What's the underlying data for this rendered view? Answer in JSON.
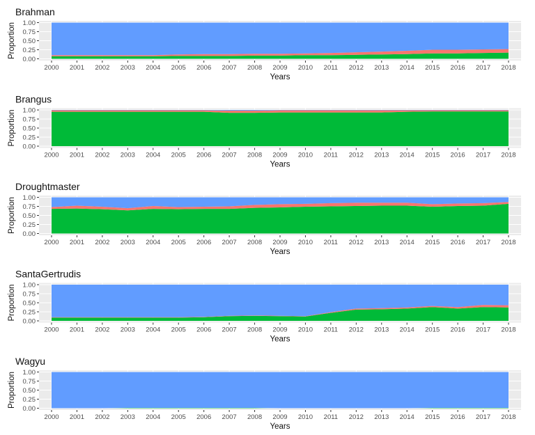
{
  "chart_data": {
    "type": "area",
    "layout": "stacked-proportion-small-multiples",
    "xlabel": "Years",
    "ylabel": "Proportion",
    "ylim": [
      0,
      1
    ],
    "yticks": [
      "0.00",
      "0.25",
      "0.50",
      "0.75",
      "1.00"
    ],
    "x": [
      2000,
      2001,
      2002,
      2003,
      2004,
      2005,
      2006,
      2007,
      2008,
      2009,
      2010,
      2011,
      2012,
      2013,
      2014,
      2015,
      2016,
      2017,
      2018
    ],
    "grid": true,
    "legend": "none",
    "stack_order": [
      "green",
      "red",
      "blue"
    ],
    "colors": {
      "green": "#00BA38",
      "red": "#F8766D",
      "blue": "#619CFF",
      "panel_bg": "#EBEBEB",
      "grid": "#FFFFFF"
    },
    "panels": [
      {
        "title": "Brahman",
        "series": [
          {
            "color": "green",
            "values": [
              0.07,
              0.07,
              0.07,
              0.07,
              0.07,
              0.08,
              0.08,
              0.08,
              0.09,
              0.09,
              0.1,
              0.1,
              0.11,
              0.12,
              0.13,
              0.15,
              0.15,
              0.16,
              0.17
            ]
          },
          {
            "color": "red",
            "values": [
              0.03,
              0.03,
              0.03,
              0.03,
              0.03,
              0.04,
              0.05,
              0.05,
              0.05,
              0.05,
              0.05,
              0.06,
              0.07,
              0.08,
              0.09,
              0.1,
              0.1,
              0.1,
              0.1
            ]
          },
          {
            "color": "blue",
            "values": [
              0.9,
              0.9,
              0.9,
              0.9,
              0.9,
              0.88,
              0.87,
              0.87,
              0.86,
              0.86,
              0.85,
              0.84,
              0.82,
              0.8,
              0.78,
              0.75,
              0.75,
              0.74,
              0.73
            ]
          }
        ]
      },
      {
        "title": "Brangus",
        "series": [
          {
            "color": "green",
            "values": [
              0.95,
              0.95,
              0.95,
              0.95,
              0.95,
              0.95,
              0.95,
              0.92,
              0.92,
              0.93,
              0.93,
              0.93,
              0.93,
              0.93,
              0.95,
              0.96,
              0.96,
              0.96,
              0.96
            ]
          },
          {
            "color": "red",
            "values": [
              0.04,
              0.04,
              0.04,
              0.04,
              0.04,
              0.04,
              0.04,
              0.06,
              0.06,
              0.06,
              0.06,
              0.06,
              0.06,
              0.06,
              0.04,
              0.03,
              0.03,
              0.03,
              0.03
            ]
          },
          {
            "color": "blue",
            "values": [
              0.01,
              0.01,
              0.01,
              0.01,
              0.01,
              0.01,
              0.01,
              0.02,
              0.02,
              0.01,
              0.01,
              0.01,
              0.01,
              0.01,
              0.01,
              0.01,
              0.01,
              0.01,
              0.01
            ]
          }
        ]
      },
      {
        "title": "Droughtmaster",
        "series": [
          {
            "color": "green",
            "values": [
              0.68,
              0.69,
              0.67,
              0.64,
              0.68,
              0.67,
              0.68,
              0.68,
              0.71,
              0.72,
              0.74,
              0.75,
              0.76,
              0.77,
              0.77,
              0.74,
              0.76,
              0.77,
              0.82
            ]
          },
          {
            "color": "red",
            "values": [
              0.05,
              0.08,
              0.07,
              0.06,
              0.08,
              0.06,
              0.06,
              0.07,
              0.08,
              0.09,
              0.08,
              0.09,
              0.09,
              0.08,
              0.08,
              0.07,
              0.07,
              0.07,
              0.05
            ]
          },
          {
            "color": "blue",
            "values": [
              0.27,
              0.23,
              0.26,
              0.3,
              0.24,
              0.27,
              0.26,
              0.25,
              0.21,
              0.19,
              0.18,
              0.16,
              0.15,
              0.15,
              0.15,
              0.19,
              0.17,
              0.16,
              0.13
            ]
          }
        ]
      },
      {
        "title": "SantaGertrudis",
        "series": [
          {
            "color": "green",
            "values": [
              0.09,
              0.09,
              0.09,
              0.09,
              0.09,
              0.09,
              0.1,
              0.13,
              0.14,
              0.13,
              0.12,
              0.22,
              0.31,
              0.32,
              0.34,
              0.38,
              0.34,
              0.38,
              0.37
            ]
          },
          {
            "color": "red",
            "values": [
              0.01,
              0.01,
              0.01,
              0.01,
              0.01,
              0.01,
              0.01,
              0.01,
              0.01,
              0.01,
              0.01,
              0.02,
              0.03,
              0.03,
              0.03,
              0.03,
              0.04,
              0.06,
              0.06
            ]
          },
          {
            "color": "blue",
            "values": [
              0.9,
              0.9,
              0.9,
              0.9,
              0.9,
              0.9,
              0.89,
              0.86,
              0.85,
              0.86,
              0.87,
              0.76,
              0.66,
              0.65,
              0.63,
              0.59,
              0.62,
              0.56,
              0.57
            ]
          }
        ]
      },
      {
        "title": "Wagyu",
        "series": [
          {
            "color": "green",
            "values": [
              0.0,
              0.0,
              0.0,
              0.01,
              0.01,
              0.01,
              0.01,
              0.01,
              0.01,
              0.0,
              0.0,
              0.0,
              0.0,
              0.0,
              0.0,
              0.01,
              0.01,
              0.01,
              0.01
            ]
          },
          {
            "color": "red",
            "values": [
              0.0,
              0.0,
              0.0,
              0.0,
              0.0,
              0.0,
              0.0,
              0.0,
              0.0,
              0.0,
              0.0,
              0.0,
              0.0,
              0.0,
              0.0,
              0.0,
              0.0,
              0.0,
              0.0
            ]
          },
          {
            "color": "blue",
            "values": [
              1.0,
              1.0,
              1.0,
              0.99,
              0.99,
              0.99,
              0.99,
              0.99,
              0.99,
              1.0,
              1.0,
              1.0,
              1.0,
              1.0,
              1.0,
              0.99,
              0.99,
              0.99,
              0.99
            ]
          }
        ]
      }
    ]
  }
}
